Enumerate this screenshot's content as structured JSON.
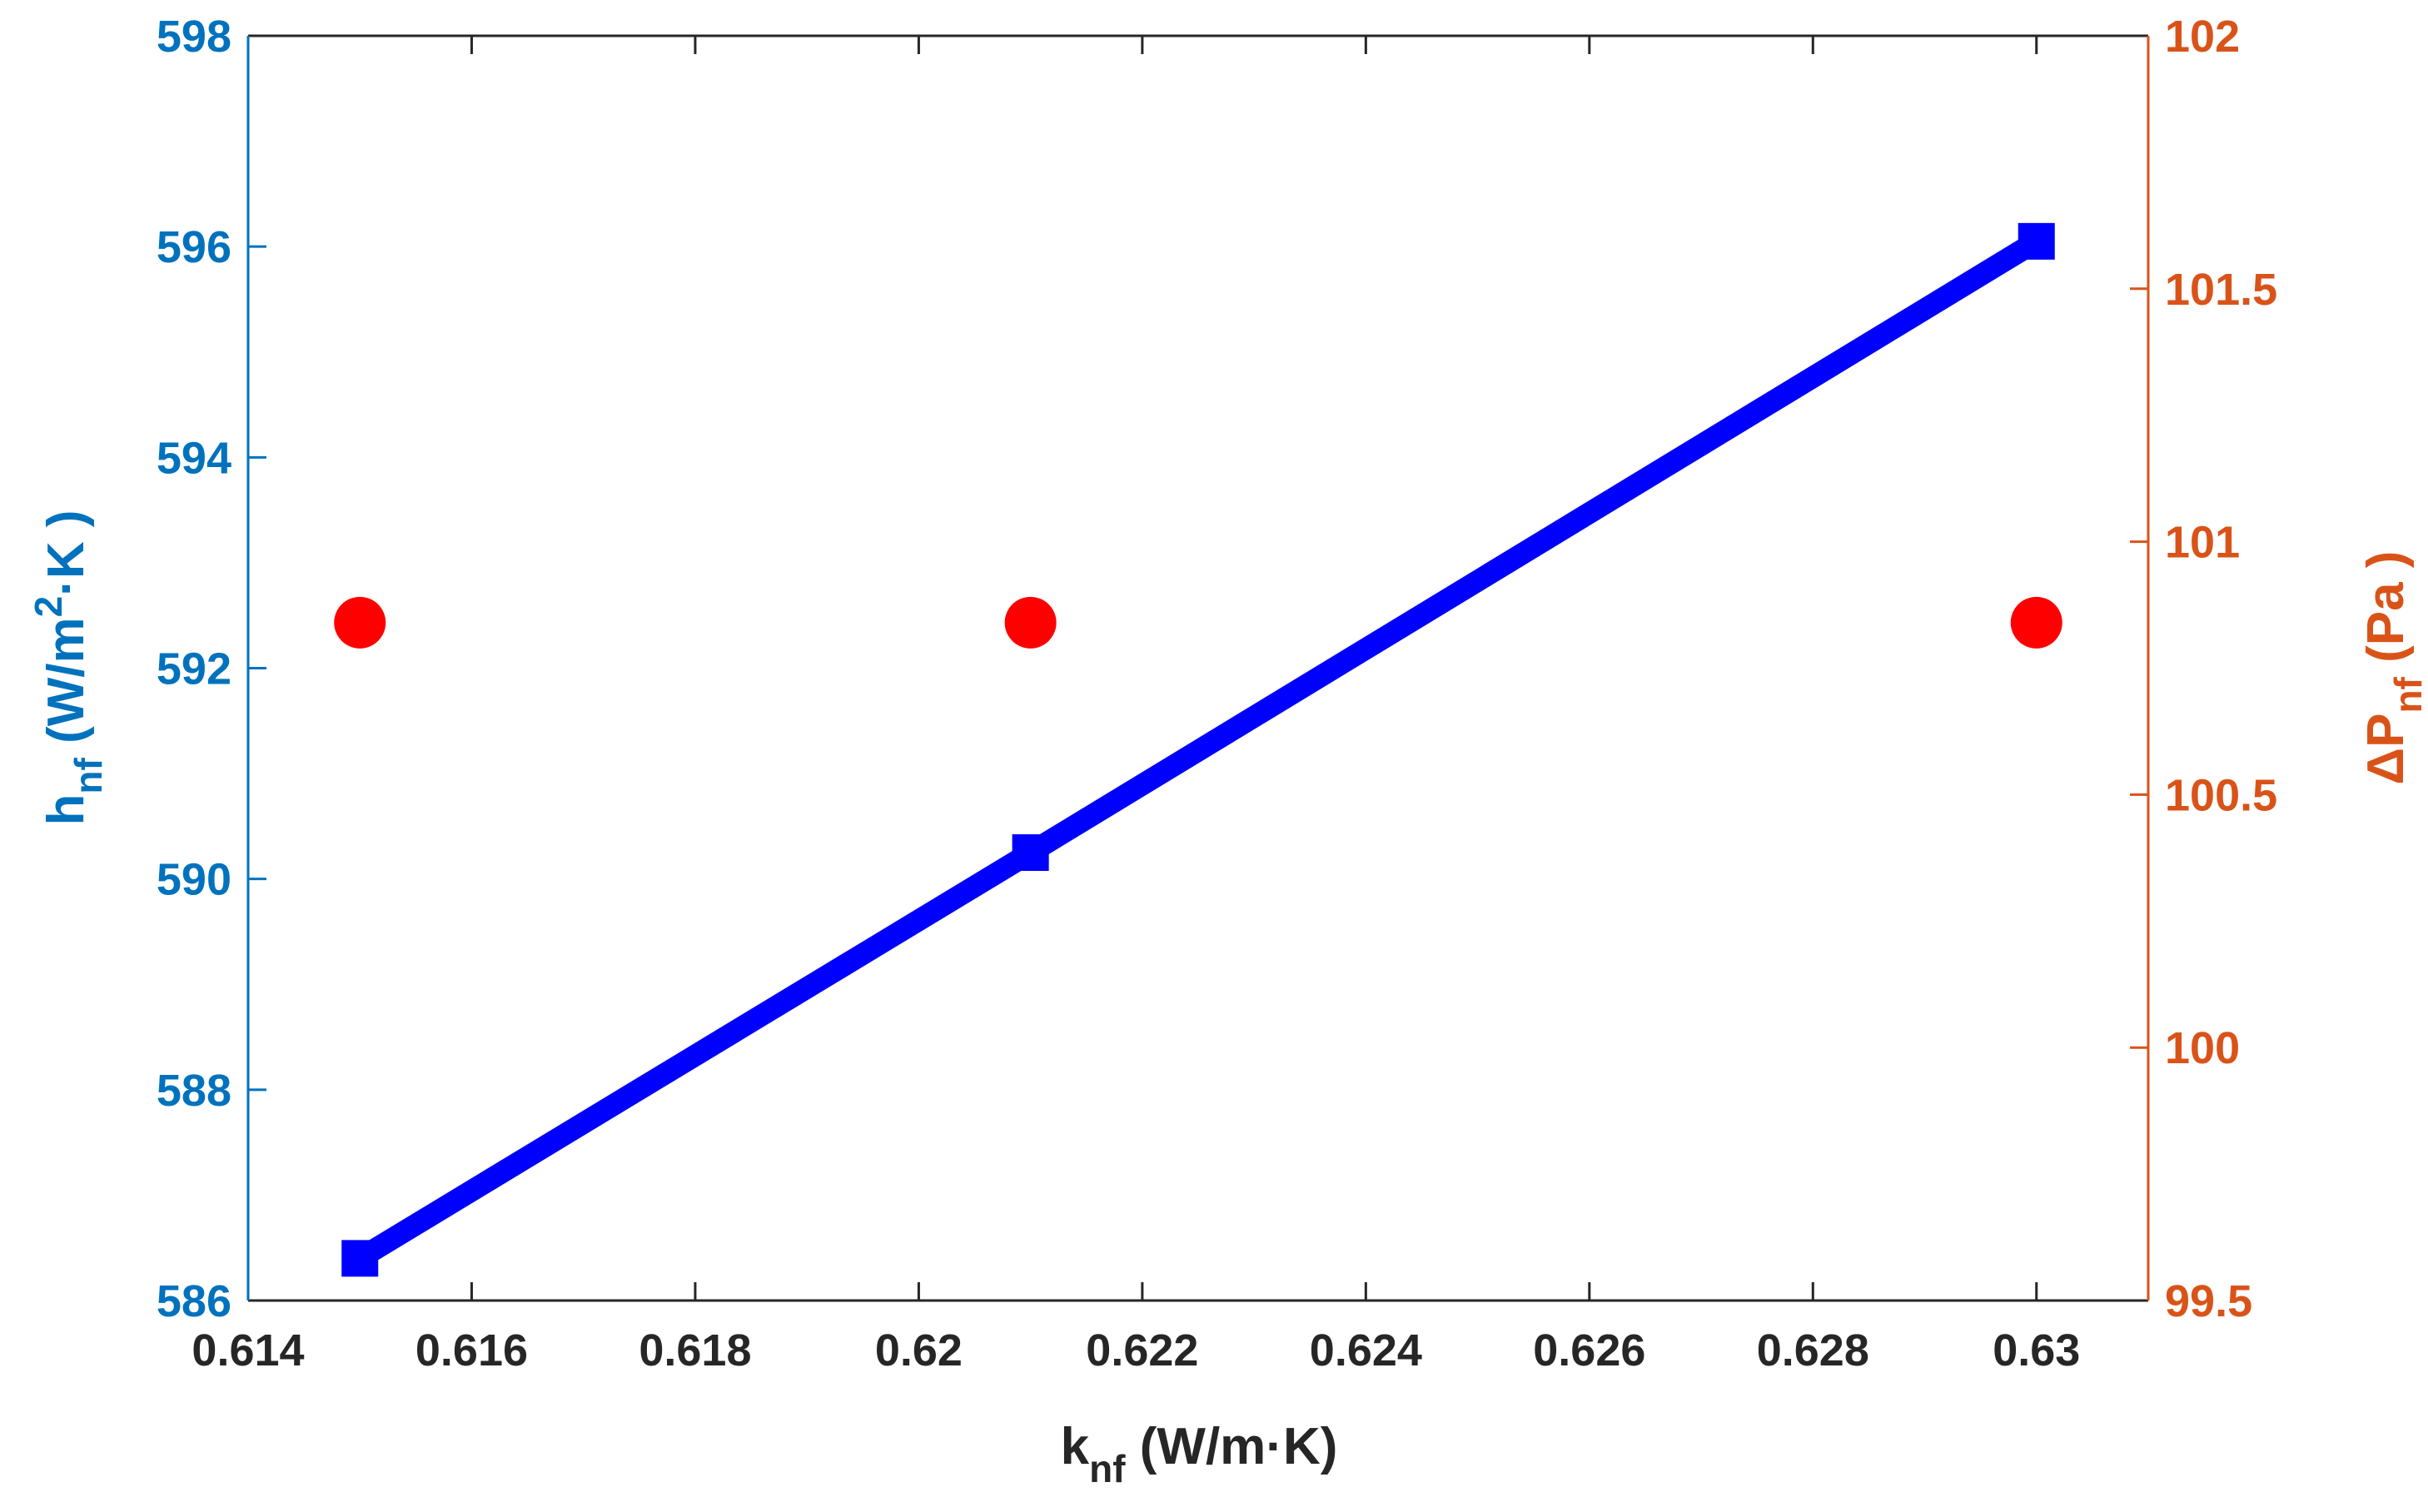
{
  "chart_data": {
    "type": "line",
    "x": [
      0.615,
      0.621,
      0.63
    ],
    "xlim": [
      0.614,
      0.631
    ],
    "xticks": [
      "0.614",
      "0.616",
      "0.618",
      "0.62",
      "0.622",
      "0.624",
      "0.626",
      "0.628",
      "0.63"
    ],
    "xlabel": {
      "base": "k",
      "sub": "nf",
      "rest": " (W/m·K)"
    },
    "y_left": {
      "lim": [
        586,
        598
      ],
      "ticks": [
        "586",
        "588",
        "590",
        "592",
        "594",
        "596",
        "598"
      ],
      "label": {
        "base": "h",
        "sub": "nf",
        "pre_sup": " (W/m",
        "sup": "2",
        "post_sup": "·K )"
      },
      "color": "#0072BD"
    },
    "y_right": {
      "lim": [
        99.5,
        102
      ],
      "ticks": [
        "99.5",
        "100",
        "100.5",
        "101",
        "101.5",
        "102"
      ],
      "label": {
        "base": "ΔP",
        "sub": "nf",
        "rest": " (Pa )"
      },
      "color": "#D95319"
    },
    "series": [
      {
        "axis": "left",
        "style": "line-with-square-markers",
        "color": "#0000FF",
        "values": [
          586.4,
          590.25,
          596.05
        ]
      },
      {
        "axis": "right",
        "style": "circle-markers",
        "color": "#FF0000",
        "values": [
          100.84,
          100.84,
          100.84
        ]
      }
    ],
    "grid": false,
    "legend": "none"
  }
}
